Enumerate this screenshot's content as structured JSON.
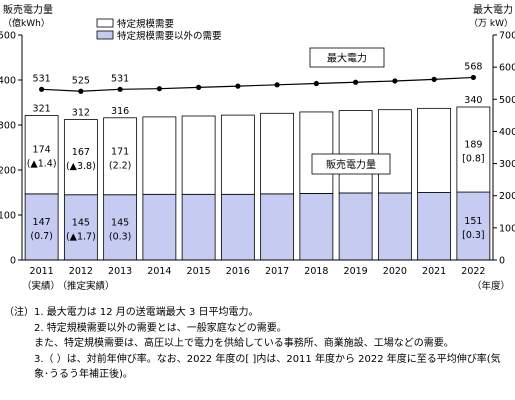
{
  "chart_data": {
    "type": "bar",
    "title": "",
    "left_axis": {
      "label": "販売電力量",
      "unit": "（億kWh）",
      "range": [
        0,
        500
      ],
      "ticks": [
        0,
        100,
        200,
        300,
        400,
        500
      ]
    },
    "right_axis": {
      "label": "最大電力",
      "unit": "（万 kW）",
      "range": [
        0,
        700
      ],
      "ticks": [
        0,
        100,
        200,
        300,
        400,
        500,
        600,
        700
      ]
    },
    "x_axis_unit": "（年度）",
    "categories": [
      "2011",
      "2012",
      "2013",
      "2014",
      "2015",
      "2016",
      "2017",
      "2018",
      "2019",
      "2020",
      "2021",
      "2022"
    ],
    "category_sublabels": [
      "（実績）",
      "（推定実績）"
    ],
    "series": [
      {
        "name": "特定規模需要以外の需要",
        "kind": "stacked_bar_bottom",
        "color": "#c6cbf2",
        "values": [
          147,
          145,
          145,
          146,
          146,
          146,
          147,
          148,
          149,
          149,
          150,
          151
        ],
        "value_labels": [
          "147",
          "145",
          "145",
          "",
          "",
          "",
          "",
          "",
          "",
          "",
          "",
          "151"
        ],
        "rate_labels": [
          "(0.7)",
          "(▲1.7)",
          "(0.3)",
          "",
          "",
          "",
          "",
          "",
          "",
          "",
          "",
          "[0.3]"
        ]
      },
      {
        "name": "特定規模需要",
        "kind": "stacked_bar_top",
        "color": "#ffffff",
        "values": [
          174,
          167,
          171,
          172,
          174,
          176,
          179,
          181,
          183,
          185,
          187,
          189
        ],
        "value_labels": [
          "174",
          "167",
          "171",
          "",
          "",
          "",
          "",
          "",
          "",
          "",
          "",
          "189"
        ],
        "rate_labels": [
          "(▲1.4)",
          "(▲3.8)",
          "(2.2)",
          "",
          "",
          "",
          "",
          "",
          "",
          "",
          "",
          "[0.8]"
        ]
      },
      {
        "name": "最大電力",
        "kind": "line_right_axis",
        "color": "#000000",
        "values": [
          531,
          525,
          531,
          533,
          537,
          541,
          545,
          549,
          553,
          557,
          562,
          568
        ],
        "value_labels": [
          "531",
          "525",
          "531",
          "",
          "",
          "",
          "",
          "",
          "",
          "",
          "",
          "568"
        ]
      }
    ],
    "total_labels": [
      "321",
      "312",
      "316",
      "",
      "",
      "",
      "",
      "",
      "",
      "",
      "",
      "340"
    ],
    "callouts": {
      "line": "最大電力",
      "bars": "販売電力量"
    },
    "legend": {
      "placement": "top-left",
      "items": [
        {
          "label": "特定規模需要",
          "swatch": "#ffffff"
        },
        {
          "label": "特定規模需要以外の需要",
          "swatch": "#c6cbf2"
        }
      ]
    },
    "grid": false
  },
  "notes": [
    {
      "head": "（注）",
      "body": "1. 最大電力は 12 月の送電端最大 3 日平均電力。"
    },
    {
      "head": "",
      "body": "2. 特定規模需要以外の需要とは、一般家庭などの需要。"
    },
    {
      "head": "",
      "body": "また、特定規模需要は、高圧以上で電力を供給している事務所、商業施設、工場などの需要。"
    },
    {
      "head": "",
      "body": "3.（ ）は、対前年伸び率。なお、2022 年度の[ ]内は、2011 年度から 2022 年度に至る平均伸び率(気象･うるう年補正後)。"
    }
  ]
}
